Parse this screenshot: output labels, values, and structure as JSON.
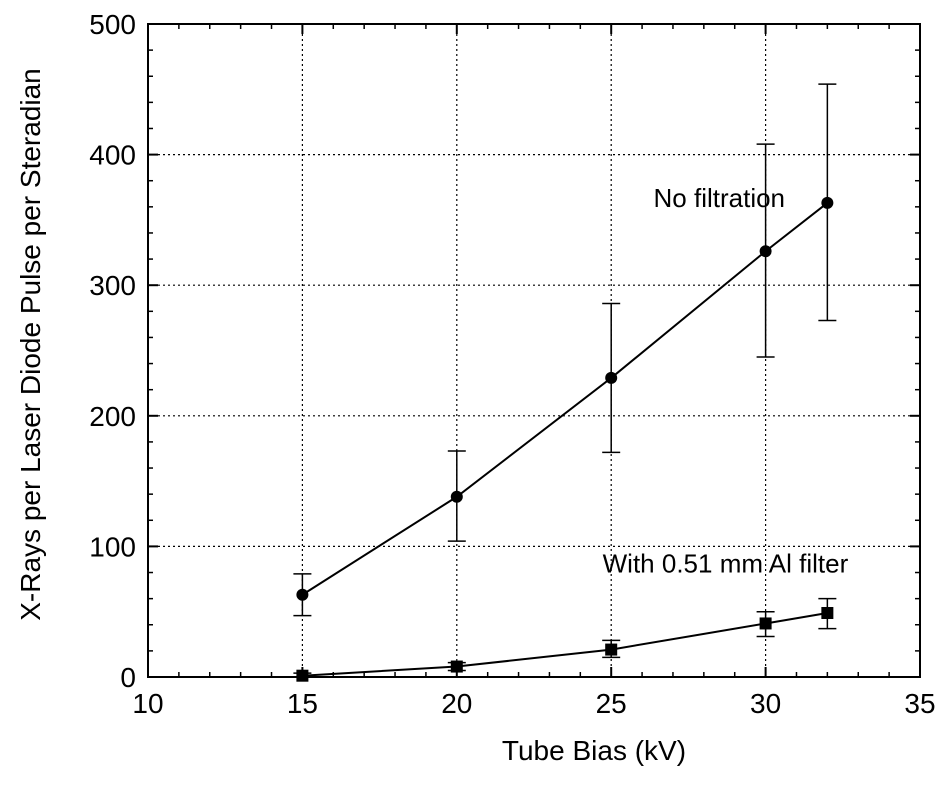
{
  "chart_data": {
    "type": "line",
    "title": "",
    "xlabel": "Tube Bias (kV)",
    "ylabel": "X-Rays per Laser Diode Pulse per Steradian",
    "xlim": [
      10,
      35
    ],
    "ylim": [
      0,
      500
    ],
    "xticks": [
      10,
      15,
      20,
      25,
      30,
      35
    ],
    "yticks": [
      0,
      100,
      200,
      300,
      400,
      500
    ],
    "grid": true,
    "series": [
      {
        "name": "No filtration",
        "marker": "circle",
        "x": [
          15,
          20,
          25,
          30,
          32
        ],
        "y": [
          63,
          138,
          229,
          326,
          363
        ],
        "err_low": [
          47,
          104,
          172,
          245,
          273
        ],
        "err_high": [
          79,
          173,
          286,
          408,
          454
        ]
      },
      {
        "name": "With 0.51 mm Al filter",
        "marker": "square",
        "x": [
          15,
          20,
          25,
          30,
          32
        ],
        "y": [
          1,
          8,
          21,
          41,
          49
        ],
        "err_low": [
          0,
          5,
          15,
          31,
          37
        ],
        "err_high": [
          3,
          11,
          28,
          50,
          60
        ]
      }
    ],
    "annotations": [
      {
        "text": "No filtration",
        "x": 28.5,
        "y": 360
      },
      {
        "text": "With 0.51 mm Al filter",
        "x": 28.7,
        "y": 80
      }
    ]
  },
  "colors": {
    "line": "#000000",
    "grid": "#000000",
    "background": "#ffffff"
  }
}
